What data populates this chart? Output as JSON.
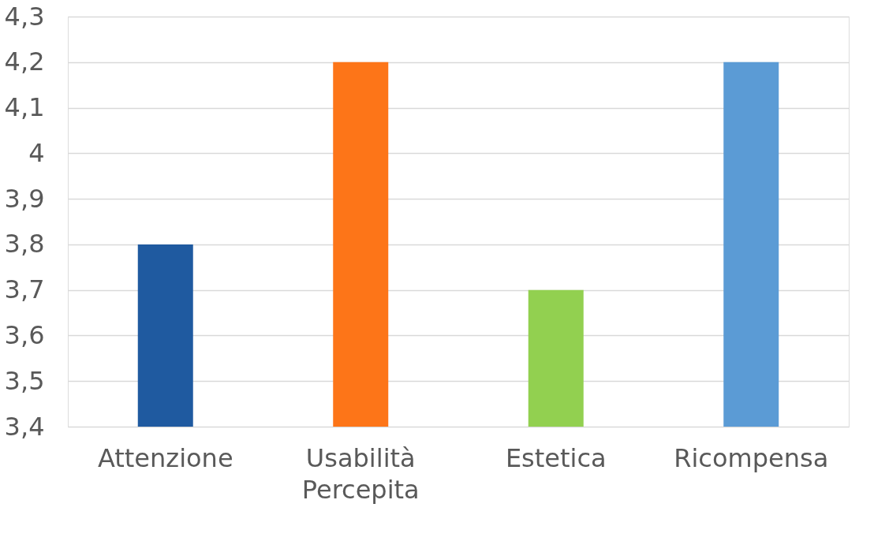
{
  "chart_data": {
    "type": "bar",
    "categories": [
      "Attenzione",
      "Usabilità Percepita",
      "Estetica",
      "Ricompensa"
    ],
    "values": [
      3.8,
      4.2,
      3.7,
      4.2
    ],
    "colors": [
      "#1f5aa0",
      "#fd7518",
      "#92d050",
      "#5b9bd5"
    ],
    "ylim": [
      3.4,
      4.3
    ],
    "yticks": [
      {
        "value": 3.4,
        "label": "3,4"
      },
      {
        "value": 3.5,
        "label": "3,5"
      },
      {
        "value": 3.6,
        "label": "3,6"
      },
      {
        "value": 3.7,
        "label": "3,7"
      },
      {
        "value": 3.8,
        "label": "3,8"
      },
      {
        "value": 3.9,
        "label": "3,9"
      },
      4,
      {
        "value": 4.1,
        "label": "4,1"
      },
      {
        "value": 4.2,
        "label": "4,2"
      },
      {
        "value": 4.3,
        "label": "4,3"
      }
    ],
    "grid": "y"
  }
}
